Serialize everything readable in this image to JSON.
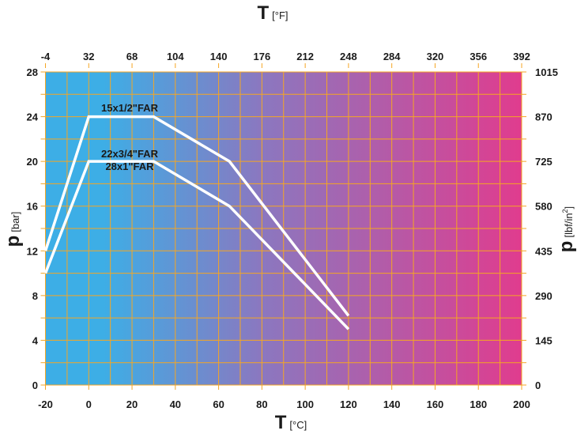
{
  "chart_data": {
    "type": "line",
    "title_top": {
      "main": "T",
      "unit": "[°F]"
    },
    "xlabel": {
      "main": "T",
      "unit": "[°C]"
    },
    "ylabel_left": {
      "main": "p",
      "unit": "[bar]"
    },
    "ylabel_right": {
      "main": "p",
      "unit": "[lbf/in",
      "sup": "2",
      "close": "]"
    },
    "xlim": [
      -20,
      200
    ],
    "ylim": [
      0,
      28
    ],
    "x_ticks": [
      "-20",
      "0",
      "20",
      "40",
      "60",
      "80",
      "100",
      "120",
      "140",
      "160",
      "180",
      "200"
    ],
    "x_top_ticks": [
      "-4",
      "32",
      "68",
      "104",
      "140",
      "176",
      "212",
      "248",
      "284",
      "320",
      "356",
      "392"
    ],
    "y_ticks": [
      "0",
      "4",
      "8",
      "12",
      "16",
      "20",
      "24",
      "28"
    ],
    "y_right_ticks": [
      "0",
      "145",
      "290",
      "435",
      "580",
      "725",
      "870",
      "1015"
    ],
    "grid": true,
    "colors": {
      "left": "#3DAEE6",
      "mid": "#8A78C0",
      "right": "#E03C8E",
      "grid": "#F5A623",
      "line": "#FFFFFF"
    },
    "series": [
      {
        "name": "15x1/2\"FAR",
        "x": [
          -20,
          0,
          30,
          65,
          120
        ],
        "y": [
          12,
          24,
          24,
          20,
          6.2
        ]
      },
      {
        "name": "22x3/4\"FAR",
        "name2": "28x1\"FAR",
        "x": [
          -20,
          0,
          30,
          65,
          120
        ],
        "y": [
          10,
          20,
          20,
          16,
          5
        ]
      }
    ]
  }
}
